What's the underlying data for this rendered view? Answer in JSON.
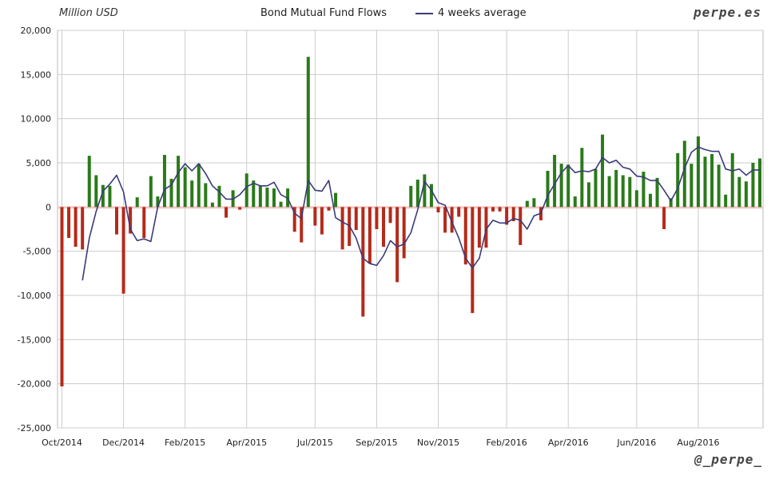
{
  "header": {
    "unit_label": "Million USD",
    "title": "Bond Mutual Fund Flows",
    "legend_label": "4 weeks average",
    "brand": "perpe.es",
    "handle": "@_perpe_"
  },
  "colors": {
    "positive_bar": "#2a7a1a",
    "negative_bar": "#b52a1a",
    "average_line": "#3a3a7a",
    "grid": "#cccccc",
    "zero_band": "#f4c7c7"
  },
  "chart_data": {
    "type": "bar",
    "title": "Bond Mutual Fund Flows",
    "ylabel": "Million USD",
    "ylim": [
      -25000,
      20000
    ],
    "yticks": [
      20000,
      15000,
      10000,
      5000,
      0,
      -5000,
      -10000,
      -15000,
      -20000,
      -25000
    ],
    "ytick_labels": [
      "20,000",
      "15,000",
      "10,000",
      "5,000",
      "0",
      "-5,000",
      "-10,000",
      "-15,000",
      "-20,000",
      "-25,000"
    ],
    "xtick_labels": [
      "Oct/2014",
      "Dec/2014",
      "Feb/2015",
      "Apr/2015",
      "Jul/2015",
      "Sep/2015",
      "Nov/2015",
      "Feb/2016",
      "Apr/2016",
      "Jun/2016",
      "Aug/2016"
    ],
    "grid": true,
    "legend": "top",
    "series": [
      {
        "type": "bar",
        "values": [
          -20300,
          -3500,
          -4500,
          -4800,
          5800,
          3600,
          2500,
          2400,
          -3100,
          -9800,
          -3000,
          1100,
          -3500,
          3500,
          1200,
          5900,
          3200,
          5800,
          4500,
          3000,
          4900,
          2700,
          500,
          2400,
          -1200,
          1900,
          -300,
          3800,
          3000,
          2400,
          2200,
          2100,
          600,
          2100,
          -2800,
          -4000,
          17000,
          -2100,
          -3100,
          -400,
          1600,
          -4800,
          -4400,
          -2600,
          -12400,
          -6400,
          -2500,
          -4500,
          -1800,
          -8500,
          -5800,
          2400,
          3100,
          3700,
          2600,
          -600,
          -2900,
          -2900,
          -1100,
          -6500,
          -12000,
          -4600,
          -4600,
          -500,
          -500,
          -2000,
          -1600,
          -4300,
          700,
          1000,
          -1500,
          4100,
          5900,
          4900,
          4800,
          1200,
          6700,
          2800,
          4300,
          8200,
          3500,
          4200,
          3600,
          3400,
          1900,
          4000,
          1500,
          3300,
          -2500,
          1000,
          6100,
          7500,
          4900,
          8000,
          5700,
          6000,
          4800,
          1400,
          6100,
          3400,
          2900,
          5000,
          5500
        ]
      },
      {
        "type": "line",
        "name": "4 weeks average",
        "values": [
          null,
          null,
          null,
          -8300,
          -3500,
          -500,
          1800,
          2600,
          3600,
          1700,
          -2500,
          -3800,
          -3600,
          -3900,
          0,
          2000,
          2500,
          3900,
          4900,
          4100,
          4900,
          3800,
          2400,
          1700,
          900,
          900,
          1400,
          2300,
          2700,
          2400,
          2400,
          2800,
          1400,
          1000,
          -700,
          -1300,
          3000,
          1900,
          1800,
          3000,
          -1200,
          -1700,
          -2100,
          -3500,
          -5800,
          -6400,
          -6600,
          -5500,
          -3800,
          -4500,
          -4200,
          -2900,
          -300,
          2900,
          1900,
          500,
          200,
          -1700,
          -3500,
          -5800,
          -6900,
          -5800,
          -2500,
          -1500,
          -1800,
          -1800,
          -1300,
          -1500,
          -2500,
          -1000,
          -700,
          1300,
          2600,
          3900,
          4700,
          3900,
          4100,
          4000,
          4300,
          5600,
          5000,
          5300,
          4500,
          4300,
          3500,
          3400,
          3000,
          3000,
          1900,
          700,
          2100,
          4400,
          6200,
          6800,
          6500,
          6300,
          6300,
          4300,
          4100,
          4300,
          3600,
          4200,
          4200
        ]
      }
    ]
  }
}
